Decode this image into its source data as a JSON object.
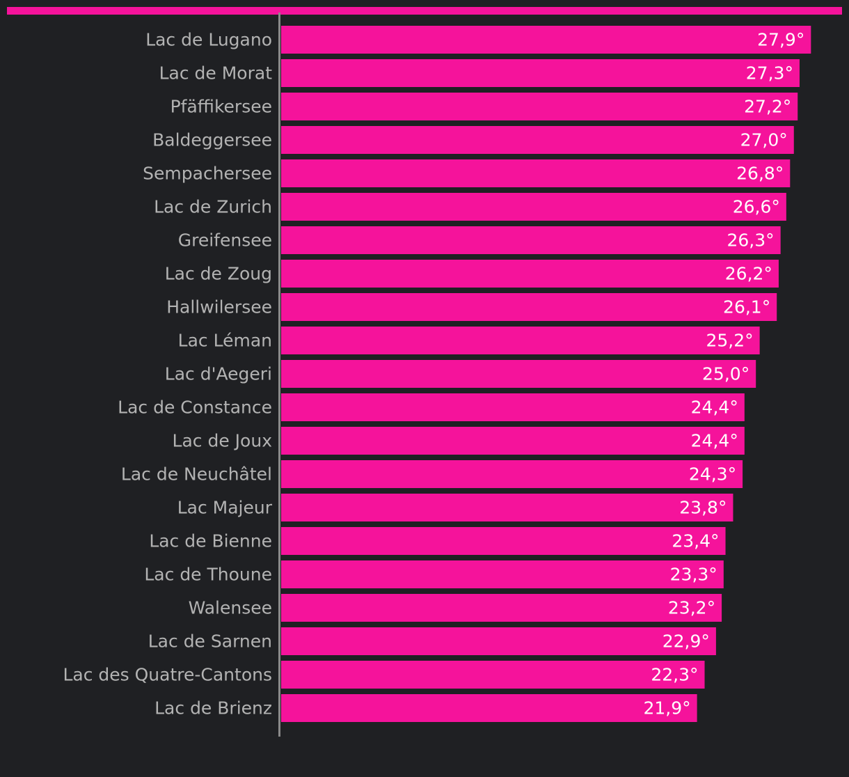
{
  "colors": {
    "background": "#1f2023",
    "bar": "#f5139b",
    "top_band": "#f5139b",
    "label": "#b3b3b3",
    "value_label": "#ffffff",
    "axis": "#8a8a8a"
  },
  "chart_data": {
    "type": "bar",
    "orientation": "horizontal",
    "title": "",
    "xlabel": "",
    "ylabel": "",
    "unit": "°",
    "decimal_separator": ",",
    "xlim": [
      0,
      29.5
    ],
    "categories": [
      "Lac de Lugano",
      "Lac de Morat",
      "Pfäffikersee",
      "Baldeggersee",
      "Sempachersee",
      "Lac de Zurich",
      "Greifensee",
      "Lac de Zoug",
      "Hallwilersee",
      "Lac Léman",
      "Lac d'Aegeri",
      "Lac de Constance",
      "Lac de Joux",
      "Lac de Neuchâtel",
      "Lac Majeur",
      "Lac de Bienne",
      "Lac de Thoune",
      "Walensee",
      "Lac de Sarnen",
      "Lac des Quatre-Cantons",
      "Lac de Brienz"
    ],
    "values": [
      27.9,
      27.3,
      27.2,
      27.0,
      26.8,
      26.6,
      26.3,
      26.2,
      26.1,
      25.2,
      25.0,
      24.4,
      24.4,
      24.3,
      23.8,
      23.4,
      23.3,
      23.2,
      22.9,
      22.3,
      21.9
    ],
    "value_labels": [
      "27,9°",
      "27,3°",
      "27,2°",
      "27,0°",
      "26,8°",
      "26,6°",
      "26,3°",
      "26,2°",
      "26,1°",
      "25,2°",
      "25,0°",
      "24,4°",
      "24,4°",
      "24,3°",
      "23,8°",
      "23,4°",
      "23,3°",
      "23,2°",
      "22,9°",
      "22,3°",
      "21,9°"
    ],
    "grid": false,
    "legend": "none"
  }
}
